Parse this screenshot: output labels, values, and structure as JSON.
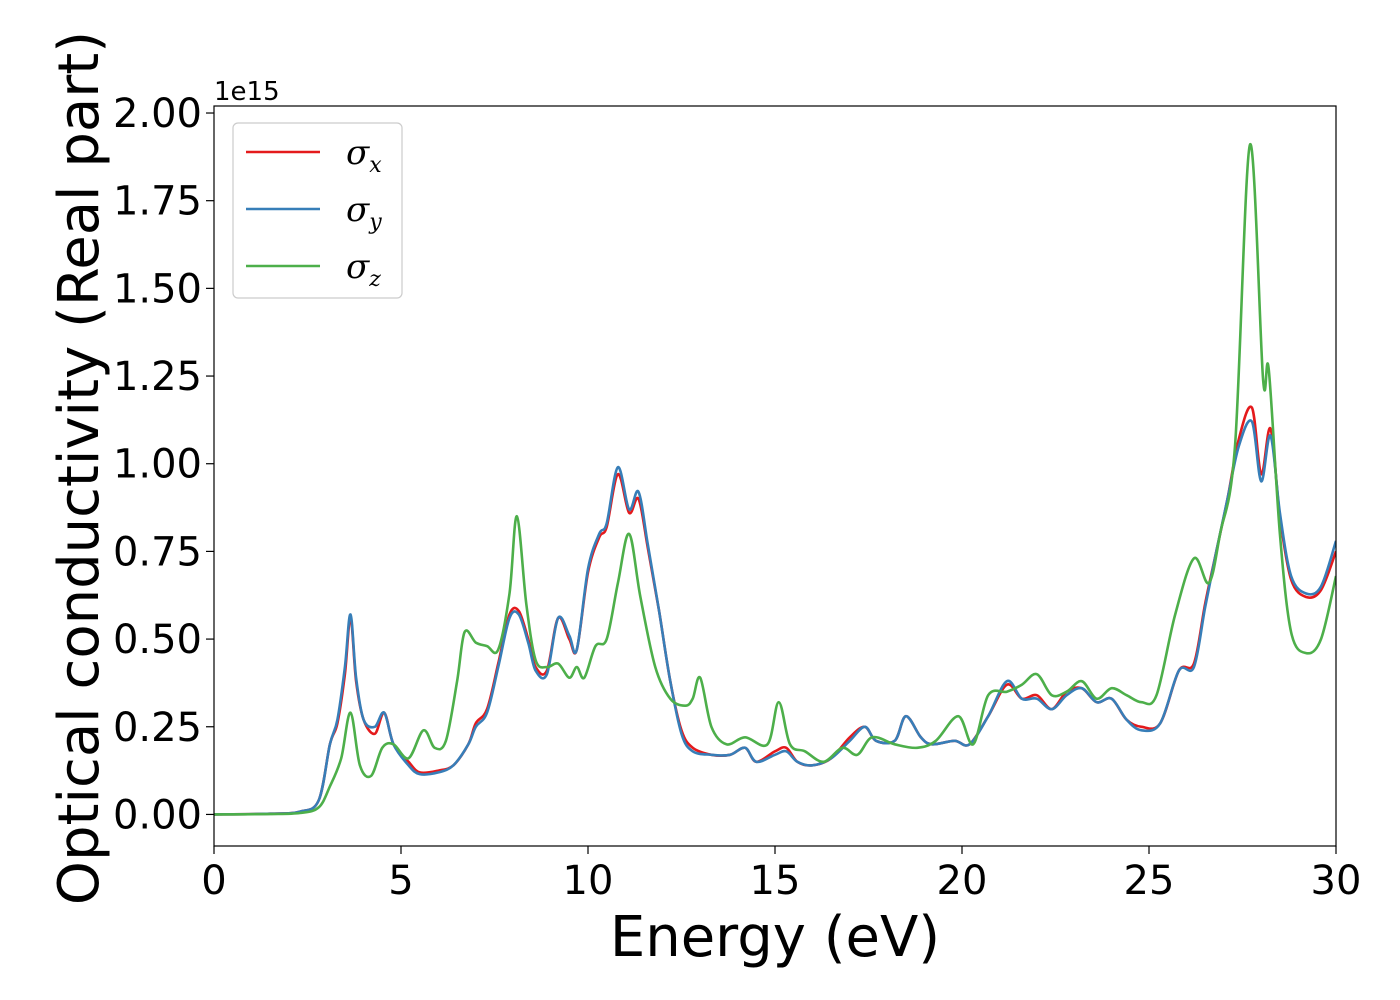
{
  "chart_data": {
    "type": "line",
    "xlabel": "Energy (eV)",
    "ylabel": "Optical conductivity (Real part)",
    "y_offset_label": "1e15",
    "xlim": [
      0,
      30
    ],
    "ylim": [
      -0.09,
      2.02
    ],
    "x_ticks": [
      0,
      5,
      10,
      15,
      20,
      25,
      30
    ],
    "x_tick_labels": [
      "0",
      "5",
      "10",
      "15",
      "20",
      "25",
      "30"
    ],
    "y_ticks": [
      0,
      0.25,
      0.5,
      0.75,
      1.0,
      1.25,
      1.5,
      1.75,
      2.0
    ],
    "y_tick_labels": [
      "0.00",
      "0.25",
      "0.50",
      "0.75",
      "1.00",
      "1.25",
      "1.50",
      "1.75",
      "2.00"
    ],
    "grid": false,
    "legend_position": "top-left",
    "series": [
      {
        "name": "σx",
        "symbol": "σ",
        "subscript": "x",
        "color": "#e41a1c",
        "points": [
          [
            0,
            0.0
          ],
          [
            1.5,
            0.002
          ],
          [
            2.3,
            0.008
          ],
          [
            2.8,
            0.04
          ],
          [
            3.1,
            0.2
          ],
          [
            3.3,
            0.26
          ],
          [
            3.5,
            0.4
          ],
          [
            3.65,
            0.56
          ],
          [
            3.8,
            0.38
          ],
          [
            4.0,
            0.27
          ],
          [
            4.3,
            0.23
          ],
          [
            4.55,
            0.29
          ],
          [
            4.8,
            0.2
          ],
          [
            5.2,
            0.15
          ],
          [
            5.5,
            0.12
          ],
          [
            6.0,
            0.125
          ],
          [
            6.4,
            0.14
          ],
          [
            6.8,
            0.2
          ],
          [
            7.0,
            0.26
          ],
          [
            7.3,
            0.3
          ],
          [
            7.6,
            0.43
          ],
          [
            7.9,
            0.57
          ],
          [
            8.15,
            0.58
          ],
          [
            8.4,
            0.5
          ],
          [
            8.6,
            0.42
          ],
          [
            8.9,
            0.41
          ],
          [
            9.2,
            0.56
          ],
          [
            9.5,
            0.5
          ],
          [
            9.7,
            0.47
          ],
          [
            10.0,
            0.69
          ],
          [
            10.3,
            0.79
          ],
          [
            10.5,
            0.82
          ],
          [
            10.8,
            0.97
          ],
          [
            11.1,
            0.86
          ],
          [
            11.35,
            0.9
          ],
          [
            11.6,
            0.76
          ],
          [
            11.9,
            0.58
          ],
          [
            12.2,
            0.38
          ],
          [
            12.5,
            0.24
          ],
          [
            12.8,
            0.19
          ],
          [
            13.3,
            0.17
          ],
          [
            13.8,
            0.17
          ],
          [
            14.2,
            0.19
          ],
          [
            14.5,
            0.15
          ],
          [
            15.0,
            0.18
          ],
          [
            15.3,
            0.19
          ],
          [
            15.6,
            0.15
          ],
          [
            16.0,
            0.14
          ],
          [
            16.5,
            0.16
          ],
          [
            17.0,
            0.22
          ],
          [
            17.4,
            0.25
          ],
          [
            17.7,
            0.21
          ],
          [
            18.2,
            0.21
          ],
          [
            18.5,
            0.28
          ],
          [
            18.9,
            0.22
          ],
          [
            19.2,
            0.2
          ],
          [
            19.8,
            0.21
          ],
          [
            20.2,
            0.2
          ],
          [
            20.7,
            0.28
          ],
          [
            21.2,
            0.37
          ],
          [
            21.6,
            0.33
          ],
          [
            22.0,
            0.34
          ],
          [
            22.4,
            0.3
          ],
          [
            22.8,
            0.35
          ],
          [
            23.2,
            0.36
          ],
          [
            23.6,
            0.32
          ],
          [
            24.0,
            0.33
          ],
          [
            24.4,
            0.27
          ],
          [
            24.8,
            0.25
          ],
          [
            25.3,
            0.26
          ],
          [
            25.8,
            0.41
          ],
          [
            26.2,
            0.43
          ],
          [
            26.5,
            0.6
          ],
          [
            26.8,
            0.75
          ],
          [
            27.1,
            0.9
          ],
          [
            27.4,
            1.07
          ],
          [
            27.75,
            1.16
          ],
          [
            28.0,
            0.97
          ],
          [
            28.25,
            1.1
          ],
          [
            28.5,
            0.85
          ],
          [
            28.8,
            0.67
          ],
          [
            29.2,
            0.62
          ],
          [
            29.6,
            0.64
          ],
          [
            30.0,
            0.75
          ]
        ]
      },
      {
        "name": "σy",
        "symbol": "σ",
        "subscript": "y",
        "color": "#377eb8",
        "points": [
          [
            0,
            0.0
          ],
          [
            1.5,
            0.002
          ],
          [
            2.3,
            0.008
          ],
          [
            2.8,
            0.04
          ],
          [
            3.1,
            0.2
          ],
          [
            3.3,
            0.27
          ],
          [
            3.5,
            0.42
          ],
          [
            3.65,
            0.57
          ],
          [
            3.8,
            0.39
          ],
          [
            4.0,
            0.27
          ],
          [
            4.3,
            0.25
          ],
          [
            4.55,
            0.29
          ],
          [
            4.8,
            0.2
          ],
          [
            5.2,
            0.14
          ],
          [
            5.5,
            0.115
          ],
          [
            6.0,
            0.12
          ],
          [
            6.4,
            0.14
          ],
          [
            6.8,
            0.2
          ],
          [
            7.0,
            0.25
          ],
          [
            7.3,
            0.29
          ],
          [
            7.6,
            0.42
          ],
          [
            7.9,
            0.56
          ],
          [
            8.15,
            0.57
          ],
          [
            8.4,
            0.49
          ],
          [
            8.6,
            0.41
          ],
          [
            8.9,
            0.4
          ],
          [
            9.2,
            0.56
          ],
          [
            9.5,
            0.51
          ],
          [
            9.7,
            0.47
          ],
          [
            10.0,
            0.7
          ],
          [
            10.3,
            0.8
          ],
          [
            10.5,
            0.83
          ],
          [
            10.8,
            0.99
          ],
          [
            11.1,
            0.87
          ],
          [
            11.35,
            0.92
          ],
          [
            11.6,
            0.77
          ],
          [
            11.9,
            0.58
          ],
          [
            12.2,
            0.38
          ],
          [
            12.5,
            0.23
          ],
          [
            12.8,
            0.18
          ],
          [
            13.3,
            0.17
          ],
          [
            13.8,
            0.17
          ],
          [
            14.2,
            0.19
          ],
          [
            14.5,
            0.15
          ],
          [
            15.0,
            0.17
          ],
          [
            15.3,
            0.18
          ],
          [
            15.6,
            0.15
          ],
          [
            16.0,
            0.14
          ],
          [
            16.5,
            0.16
          ],
          [
            17.0,
            0.21
          ],
          [
            17.4,
            0.25
          ],
          [
            17.7,
            0.21
          ],
          [
            18.2,
            0.21
          ],
          [
            18.5,
            0.28
          ],
          [
            18.9,
            0.22
          ],
          [
            19.2,
            0.2
          ],
          [
            19.8,
            0.21
          ],
          [
            20.2,
            0.2
          ],
          [
            20.7,
            0.28
          ],
          [
            21.2,
            0.38
          ],
          [
            21.6,
            0.33
          ],
          [
            22.0,
            0.33
          ],
          [
            22.4,
            0.3
          ],
          [
            22.8,
            0.34
          ],
          [
            23.2,
            0.36
          ],
          [
            23.6,
            0.32
          ],
          [
            24.0,
            0.33
          ],
          [
            24.4,
            0.27
          ],
          [
            24.8,
            0.24
          ],
          [
            25.3,
            0.26
          ],
          [
            25.8,
            0.41
          ],
          [
            26.2,
            0.42
          ],
          [
            26.5,
            0.59
          ],
          [
            26.8,
            0.75
          ],
          [
            27.1,
            0.9
          ],
          [
            27.4,
            1.05
          ],
          [
            27.75,
            1.12
          ],
          [
            28.0,
            0.95
          ],
          [
            28.25,
            1.08
          ],
          [
            28.5,
            0.86
          ],
          [
            28.8,
            0.68
          ],
          [
            29.2,
            0.63
          ],
          [
            29.6,
            0.65
          ],
          [
            30.0,
            0.78
          ]
        ]
      },
      {
        "name": "σz",
        "symbol": "σ",
        "subscript": "z",
        "color": "#4daf4a",
        "points": [
          [
            0,
            0.0
          ],
          [
            1.5,
            0.001
          ],
          [
            2.3,
            0.004
          ],
          [
            2.8,
            0.02
          ],
          [
            3.1,
            0.08
          ],
          [
            3.4,
            0.16
          ],
          [
            3.65,
            0.29
          ],
          [
            3.9,
            0.14
          ],
          [
            4.2,
            0.11
          ],
          [
            4.5,
            0.19
          ],
          [
            4.8,
            0.2
          ],
          [
            5.2,
            0.16
          ],
          [
            5.6,
            0.24
          ],
          [
            5.9,
            0.19
          ],
          [
            6.2,
            0.21
          ],
          [
            6.5,
            0.38
          ],
          [
            6.7,
            0.52
          ],
          [
            7.0,
            0.49
          ],
          [
            7.3,
            0.48
          ],
          [
            7.6,
            0.47
          ],
          [
            7.9,
            0.63
          ],
          [
            8.1,
            0.85
          ],
          [
            8.35,
            0.6
          ],
          [
            8.6,
            0.44
          ],
          [
            8.9,
            0.42
          ],
          [
            9.2,
            0.43
          ],
          [
            9.5,
            0.39
          ],
          [
            9.7,
            0.42
          ],
          [
            9.9,
            0.39
          ],
          [
            10.2,
            0.48
          ],
          [
            10.5,
            0.5
          ],
          [
            10.8,
            0.66
          ],
          [
            11.1,
            0.8
          ],
          [
            11.4,
            0.62
          ],
          [
            11.8,
            0.42
          ],
          [
            12.2,
            0.33
          ],
          [
            12.6,
            0.31
          ],
          [
            12.8,
            0.33
          ],
          [
            13.0,
            0.39
          ],
          [
            13.3,
            0.25
          ],
          [
            13.7,
            0.2
          ],
          [
            14.2,
            0.22
          ],
          [
            14.8,
            0.2
          ],
          [
            15.1,
            0.32
          ],
          [
            15.4,
            0.2
          ],
          [
            15.8,
            0.18
          ],
          [
            16.3,
            0.15
          ],
          [
            16.8,
            0.19
          ],
          [
            17.2,
            0.17
          ],
          [
            17.6,
            0.22
          ],
          [
            18.2,
            0.2
          ],
          [
            18.8,
            0.19
          ],
          [
            19.3,
            0.21
          ],
          [
            19.9,
            0.28
          ],
          [
            20.3,
            0.2
          ],
          [
            20.7,
            0.34
          ],
          [
            21.2,
            0.35
          ],
          [
            21.6,
            0.37
          ],
          [
            22.0,
            0.4
          ],
          [
            22.4,
            0.34
          ],
          [
            22.8,
            0.35
          ],
          [
            23.2,
            0.38
          ],
          [
            23.6,
            0.33
          ],
          [
            24.0,
            0.36
          ],
          [
            24.4,
            0.34
          ],
          [
            24.8,
            0.32
          ],
          [
            25.2,
            0.34
          ],
          [
            25.7,
            0.57
          ],
          [
            26.2,
            0.73
          ],
          [
            26.6,
            0.66
          ],
          [
            26.9,
            0.8
          ],
          [
            27.3,
            1.05
          ],
          [
            27.7,
            1.91
          ],
          [
            28.05,
            1.24
          ],
          [
            28.2,
            1.27
          ],
          [
            28.5,
            0.8
          ],
          [
            28.8,
            0.52
          ],
          [
            29.2,
            0.46
          ],
          [
            29.6,
            0.5
          ],
          [
            30.0,
            0.68
          ]
        ]
      }
    ]
  }
}
